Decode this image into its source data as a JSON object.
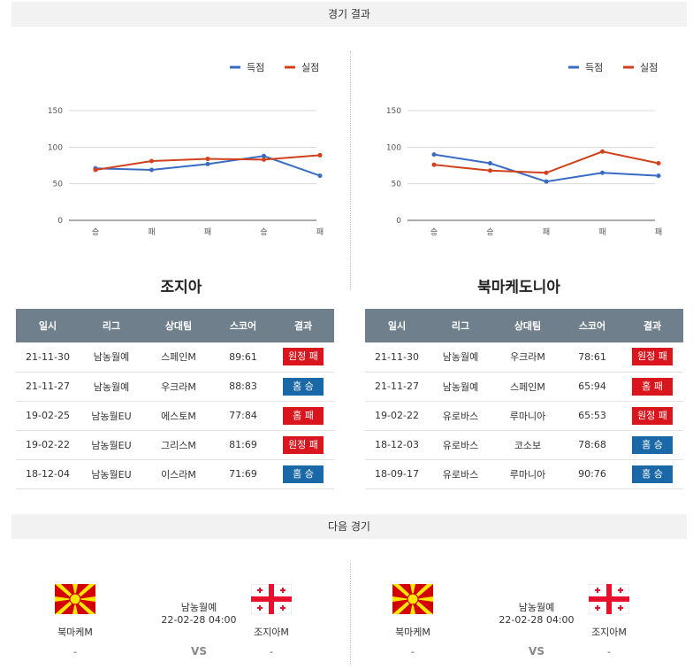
{
  "sections": {
    "results_title": "경기 결과",
    "next_title": "다음 경기"
  },
  "legend": {
    "scored": "득점",
    "conceded": "실점"
  },
  "colors": {
    "scored": "#3a6bc4",
    "conceded": "#d2401c",
    "win": "#1a68a8",
    "loss": "#d9161e",
    "header": "#6f7f8c"
  },
  "chart_data": [
    {
      "type": "line",
      "categories": [
        "승",
        "패",
        "패",
        "승",
        "패"
      ],
      "y_ticks": [
        "0",
        "50",
        "100",
        "150"
      ],
      "ylim": [
        0,
        150
      ],
      "series": [
        {
          "name": "득점",
          "values": [
            71,
            69,
            77,
            88,
            61
          ]
        },
        {
          "name": "실점",
          "values": [
            69,
            81,
            84,
            83,
            89
          ]
        }
      ],
      "legend_position": "top-right",
      "grid": true
    },
    {
      "type": "line",
      "categories": [
        "승",
        "승",
        "패",
        "패",
        "패"
      ],
      "y_ticks": [
        "0",
        "50",
        "100",
        "150"
      ],
      "ylim": [
        0,
        150
      ],
      "series": [
        {
          "name": "득점",
          "values": [
            90,
            78,
            53,
            65,
            61
          ]
        },
        {
          "name": "실점",
          "values": [
            76,
            68,
            65,
            94,
            78
          ]
        }
      ],
      "legend_position": "top-right",
      "grid": true
    }
  ],
  "teams": [
    {
      "name": "조지아",
      "headers": [
        "일시",
        "리그",
        "상대팀",
        "스코어",
        "결과"
      ],
      "rows": [
        {
          "date": "21-11-30",
          "league": "남농월예",
          "opponent": "스페인M",
          "score": "89:61",
          "result": "원정 패",
          "outcome": "loss"
        },
        {
          "date": "21-11-27",
          "league": "남농월예",
          "opponent": "우크라M",
          "score": "88:83",
          "result": "홈 승",
          "outcome": "win"
        },
        {
          "date": "19-02-25",
          "league": "남농월EU",
          "opponent": "에스토M",
          "score": "77:84",
          "result": "홈 패",
          "outcome": "loss"
        },
        {
          "date": "19-02-22",
          "league": "남농월EU",
          "opponent": "그리스M",
          "score": "81:69",
          "result": "원정 패",
          "outcome": "loss"
        },
        {
          "date": "18-12-04",
          "league": "남농월EU",
          "opponent": "이스라M",
          "score": "71:69",
          "result": "홈 승",
          "outcome": "win"
        }
      ]
    },
    {
      "name": "북마케도니아",
      "headers": [
        "일시",
        "리그",
        "상대팀",
        "스코어",
        "결과"
      ],
      "rows": [
        {
          "date": "21-11-30",
          "league": "남농월예",
          "opponent": "우크라M",
          "score": "78:61",
          "result": "원정 패",
          "outcome": "loss"
        },
        {
          "date": "21-11-27",
          "league": "남농월예",
          "opponent": "스페인M",
          "score": "65:94",
          "result": "홈 패",
          "outcome": "loss"
        },
        {
          "date": "19-02-22",
          "league": "유로바스",
          "opponent": "루마니아",
          "score": "65:53",
          "result": "원정 패",
          "outcome": "loss"
        },
        {
          "date": "18-12-03",
          "league": "유로바스",
          "opponent": "코소보",
          "score": "78:68",
          "result": "홈 승",
          "outcome": "win"
        },
        {
          "date": "18-09-17",
          "league": "유로바스",
          "opponent": "루마니아",
          "score": "90:76",
          "result": "홈 승",
          "outcome": "win"
        }
      ]
    }
  ],
  "next_matches": [
    {
      "home": "북마케M",
      "home_record": "-",
      "league": "남농월예",
      "datetime": "22-02-28 04:00",
      "vs": "VS",
      "away": "조지아M",
      "away_record": "-"
    },
    {
      "home": "북마케M",
      "home_record": "-",
      "league": "남농월예",
      "datetime": "22-02-28 04:00",
      "vs": "VS",
      "away": "조지아M",
      "away_record": "-"
    }
  ]
}
